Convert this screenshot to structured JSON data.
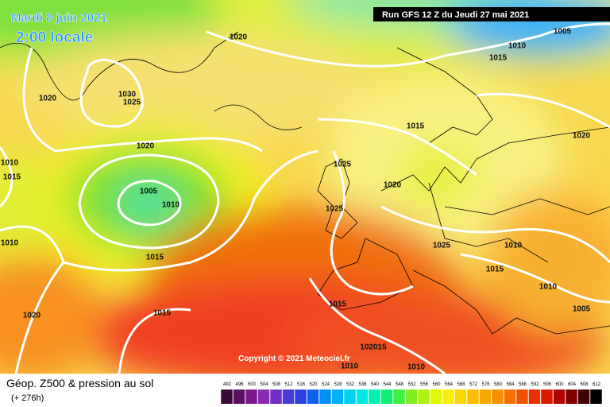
{
  "header": {
    "date": "Mardi 8 juin 2021",
    "time": "2:00 locale",
    "run": "Run GFS 12 Z du Jeudi 27 mai 2021"
  },
  "copyright": "Copyright © 2021 Meteociel.fr",
  "footer": {
    "title": "Géop. Z500 & pression au sol",
    "lead": "(+ 276h)"
  },
  "isobar_labels": [
    "1020",
    "1020",
    "1030",
    "1025",
    "1020",
    "1010",
    "1015",
    "1005",
    "1010",
    "1010",
    "1015",
    "1015",
    "1020",
    "1025",
    "1025",
    "1020",
    "1015",
    "1005",
    "1010",
    "1015",
    "1020",
    "1025",
    "1010",
    "1015",
    "1010",
    "1005",
    "1015",
    "102015",
    "1010",
    "1010"
  ],
  "scale": {
    "labels": [
      492,
      496,
      500,
      504,
      508,
      512,
      516,
      520,
      524,
      528,
      532,
      536,
      540,
      544,
      548,
      552,
      556,
      560,
      564,
      568,
      572,
      576,
      580,
      584,
      588,
      592,
      596,
      600,
      604,
      608,
      612
    ],
    "colors": [
      "#3a0a3a",
      "#5a1060",
      "#7a1a8a",
      "#8a2ab0",
      "#7030c8",
      "#4a3ad8",
      "#2a40e0",
      "#1060f0",
      "#0090f8",
      "#00b0f8",
      "#00d0f0",
      "#00e8e0",
      "#00f0b0",
      "#10f070",
      "#40f040",
      "#80f020",
      "#b0f010",
      "#e0f800",
      "#f8f000",
      "#f8d800",
      "#f8c000",
      "#f8a800",
      "#f89000",
      "#f87000",
      "#f05000",
      "#e83000",
      "#d81800",
      "#b00000",
      "#800000",
      "#400000",
      "#000000"
    ]
  }
}
